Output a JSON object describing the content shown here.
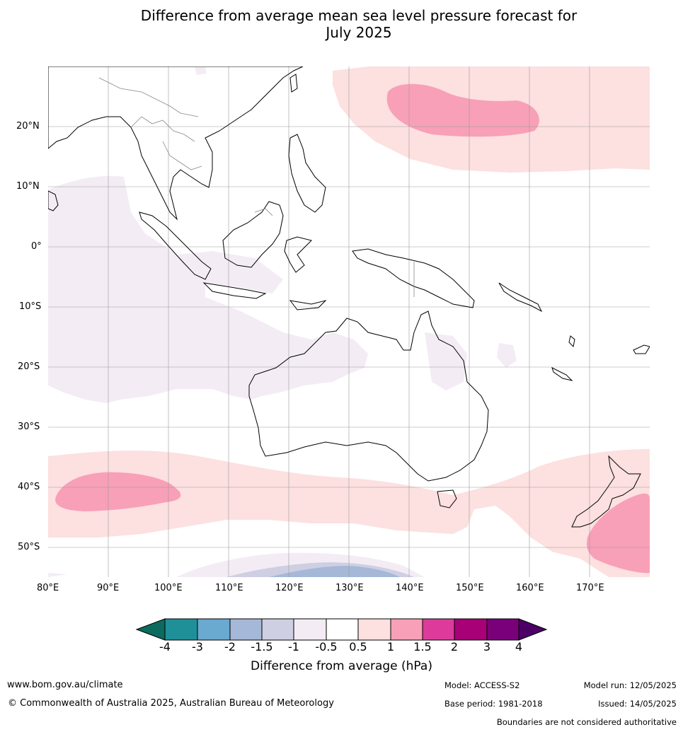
{
  "title_line1": "Difference from average mean sea level pressure forecast for",
  "title_line2": "July 2025",
  "lat_labels": [
    "20°N",
    "10°N",
    "0°",
    "10°S",
    "20°S",
    "30°S",
    "40°S",
    "50°S"
  ],
  "lon_labels": [
    "80°E",
    "90°E",
    "100°E",
    "110°E",
    "120°E",
    "130°E",
    "140°E",
    "150°E",
    "160°E",
    "170°E"
  ],
  "colorbar": {
    "tick_labels": [
      "-4",
      "-3",
      "-2",
      "-1.5",
      "-1",
      "-0.5",
      "0.5",
      "1",
      "1.5",
      "2",
      "3",
      "4"
    ],
    "colors": [
      "#0a6b5e",
      "#1f8f98",
      "#6aa9d0",
      "#a6b8d8",
      "#cfcfe3",
      "#f3ecf5",
      "#ffffff",
      "#fde0e0",
      "#f8a0b8",
      "#dc3b9c",
      "#a80076",
      "#7a007a",
      "#4b0066"
    ],
    "title": "Difference from average (hPa)"
  },
  "footer": {
    "website": "www.bom.gov.au/climate",
    "copyright": "© Commonwealth of Australia 2025, Australian Bureau of Meteorology",
    "model": "Model: ACCESS-S2",
    "base_period": "Base period: 1981-2018",
    "model_run": "Model run: 12/05/2025",
    "issued": "Issued: 14/05/2025",
    "disclaimer": "Boundaries are not considered authoritative"
  }
}
